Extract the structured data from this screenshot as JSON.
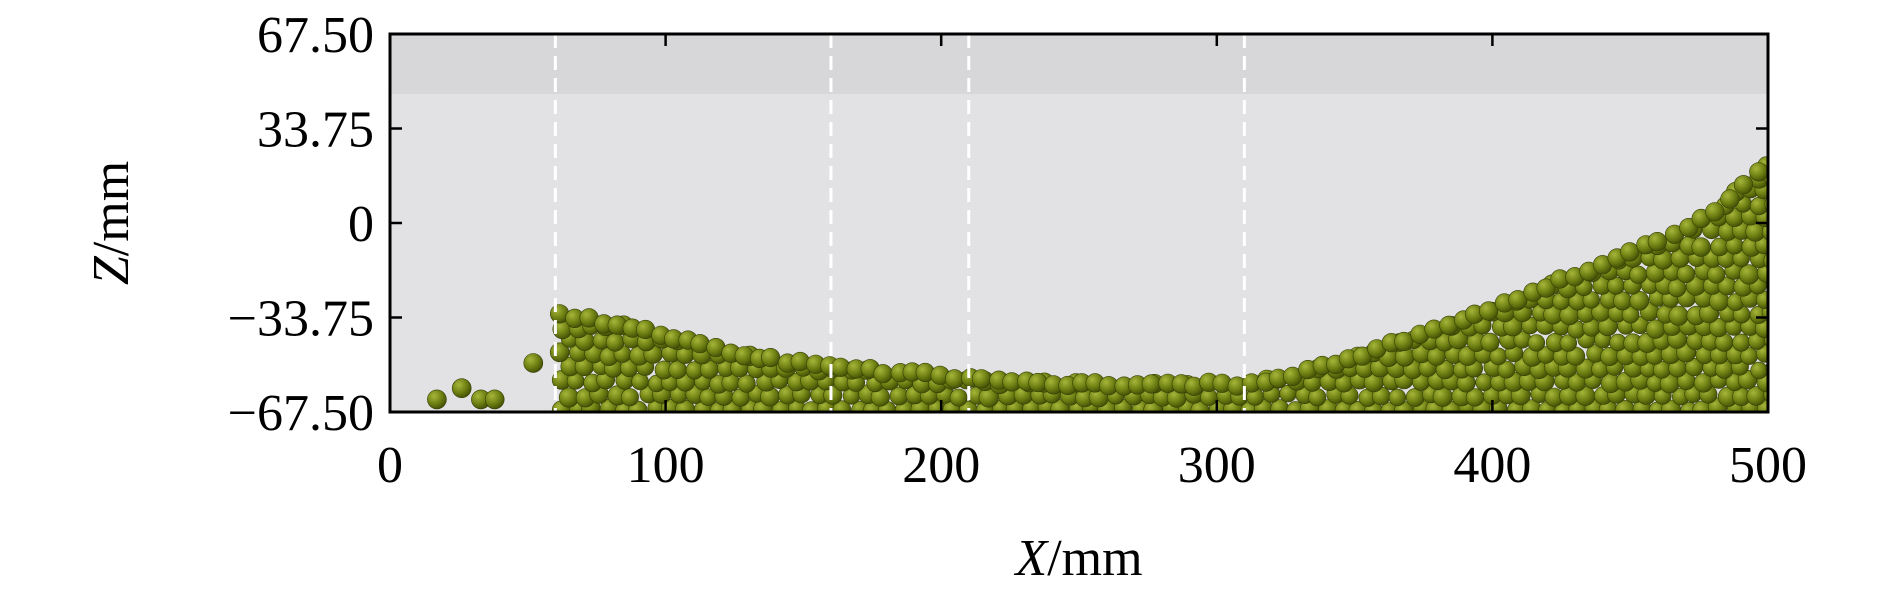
{
  "chart_data": {
    "type": "scatter",
    "title": "",
    "xlabel": {
      "var": "X",
      "unit": "/mm"
    },
    "ylabel": {
      "var": "Z",
      "unit": "/mm"
    },
    "xlim": [
      0,
      500
    ],
    "ylim": [
      -67.5,
      67.5
    ],
    "x_ticks": [
      0,
      100,
      200,
      300,
      400,
      500
    ],
    "x_tick_labels": [
      "0",
      "100",
      "200",
      "300",
      "400",
      "500"
    ],
    "y_ticks": [
      67.5,
      33.75,
      0,
      -33.75,
      -67.5
    ],
    "y_tick_labels": [
      "67.50",
      "33.75",
      "0",
      "−33.75",
      "−67.50"
    ],
    "section_boundaries_x": [
      60,
      160,
      210,
      310
    ],
    "grid": false,
    "background_color": "#e2e2e4",
    "band_color": "#d3d3d6",
    "boundary_color": "#ffffff",
    "particle_color": "#6b7c10",
    "particle_radius_mm": 3.3,
    "surface_profile": [
      [
        60,
        -30
      ],
      [
        65,
        -31
      ],
      [
        80,
        -33
      ],
      [
        100,
        -38
      ],
      [
        130,
        -45
      ],
      [
        160,
        -49
      ],
      [
        200,
        -52
      ],
      [
        220,
        -54
      ],
      [
        260,
        -55
      ],
      [
        300,
        -55
      ],
      [
        310,
        -55
      ],
      [
        330,
        -51
      ],
      [
        360,
        -42
      ],
      [
        400,
        -28
      ],
      [
        430,
        -16
      ],
      [
        460,
        -4
      ],
      [
        480,
        6
      ],
      [
        500,
        24
      ]
    ],
    "scattered_particles": [
      [
        17,
        -63
      ],
      [
        26,
        -59
      ],
      [
        33,
        -63
      ],
      [
        38,
        -63
      ],
      [
        52,
        -50
      ]
    ]
  }
}
